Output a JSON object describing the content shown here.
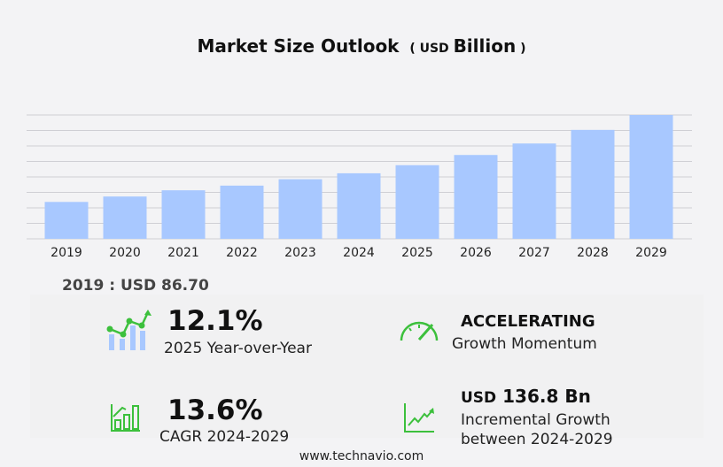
{
  "chart_data": {
    "type": "bar",
    "title": "Market Size Outlook",
    "unit_prefix": "USD",
    "unit": "Billion",
    "categories": [
      "2019",
      "2020",
      "2021",
      "2022",
      "2023",
      "2024",
      "2025",
      "2026",
      "2027",
      "2028",
      "2029"
    ],
    "values": [
      86.7,
      99.4,
      114,
      125,
      140,
      154,
      173,
      197,
      224,
      256,
      291
    ],
    "ylim": [
      0,
      291
    ],
    "grid": true,
    "bar_color": "#a8c8ff"
  },
  "base_value": "2019 : USD  86.70",
  "stats": {
    "yoy": {
      "value": "12.1%",
      "label": "2025 Year-over-Year"
    },
    "momentum": {
      "value": "ACCELERATING",
      "label": "Growth Momentum"
    },
    "cagr": {
      "value": "13.6%",
      "label": "CAGR 2024-2029"
    },
    "incremental": {
      "prefix": "USD",
      "value": "136.8 Bn",
      "label1": "Incremental Growth",
      "label2": "between 2024-2029"
    }
  },
  "accent_color": "#3cc03c",
  "footer": "www.technavio.com"
}
